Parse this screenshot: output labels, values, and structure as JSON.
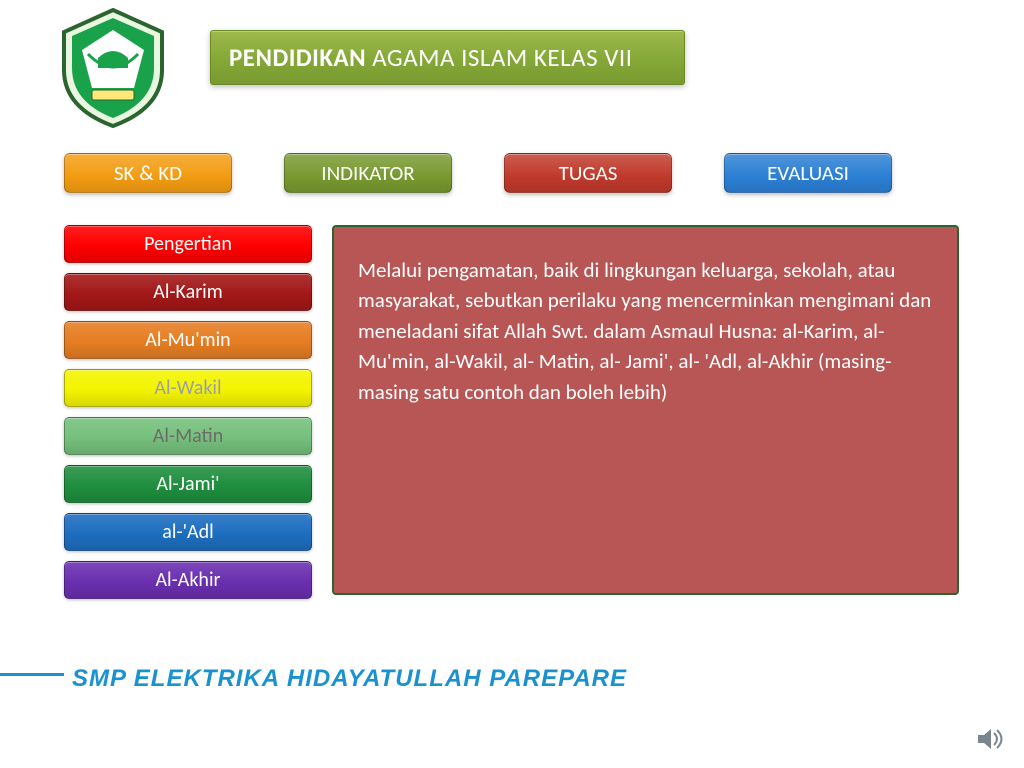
{
  "title": {
    "bold": "PENDIDIKAN",
    "rest": "AGAMA ISLAM KELAS VII"
  },
  "nav": [
    {
      "label": "SK &  KD",
      "bg": "#f39c12"
    },
    {
      "label": "INDIKATOR",
      "bg": "#78992f"
    },
    {
      "label": "TUGAS",
      "bg": "#c0392b"
    },
    {
      "label": "EVALUASI",
      "bg": "#2b7fd4"
    }
  ],
  "sideMenu": [
    {
      "label": "Pengertian",
      "bg": "#ff0000",
      "color": "#ffffff"
    },
    {
      "label": "Al-Karim",
      "bg": "#a31818",
      "color": "#ffffff"
    },
    {
      "label": "Al-Mu'min",
      "bg": "#e67e22",
      "color": "#ffffff"
    },
    {
      "label": "Al-Wakil",
      "bg": "#f4f400",
      "color": "#9aa0a6"
    },
    {
      "label": "Al-Matin",
      "bg": "#76c07c",
      "color": "#6b6b6b"
    },
    {
      "label": "Al-Jami'",
      "bg": "#1f8f3e",
      "color": "#ffffff"
    },
    {
      "label": "al-'Adl",
      "bg": "#1d6ec0",
      "color": "#ffffff"
    },
    {
      "label": "Al-Akhir",
      "bg": "#6a2fb0",
      "color": "#ffffff"
    }
  ],
  "contentPanel": {
    "bg": "#b85656",
    "text": "Melalui pengamatan, baik di lingkungan keluarga, sekolah, atau masyarakat, sebutkan perilaku yang mencerminkan mengimani dan meneladani sifat Allah Swt. dalam Asmaul Husna: al-Karim, al-Mu'min, al-Wakil, al- Matin, al- Jami', al- 'Adl, al-Akhir (masing-masing satu contoh dan boleh lebih)"
  },
  "footer": {
    "text": "SMP ELEKTRIKA HIDAYATULLAH PAREPARE",
    "color": "#1a92cf"
  },
  "logo": {
    "shieldStroke": "#2a642e",
    "shieldFill": "#e9f7e1",
    "innerFill": "#1aa24a",
    "pentagonFill": "#ffffff",
    "bannerFill": "#ffe97a"
  },
  "speakerColor": "#7a868f"
}
